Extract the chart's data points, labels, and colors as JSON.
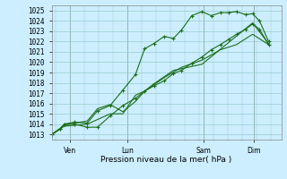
{
  "xlabel": "Pression niveau de la mer( hPa )",
  "bg_color": "#cceeff",
  "grid_color": "#99cccc",
  "line_color": "#1a6e1a",
  "ylim": [
    1012.5,
    1025.5
  ],
  "yticks": [
    1013,
    1014,
    1015,
    1016,
    1017,
    1018,
    1019,
    1020,
    1021,
    1022,
    1023,
    1024,
    1025
  ],
  "xtick_labels": [
    "Ven",
    "Lun",
    "Sam",
    "Dim"
  ],
  "xtick_positions": [
    0.08,
    0.33,
    0.66,
    0.88
  ],
  "series1_x": [
    0.0,
    0.035,
    0.055,
    0.1,
    0.155,
    0.2,
    0.255,
    0.31,
    0.365,
    0.405,
    0.445,
    0.49,
    0.53,
    0.565,
    0.61,
    0.655,
    0.695,
    0.735,
    0.77,
    0.805,
    0.845,
    0.875,
    0.905,
    0.945
  ],
  "series1_y": [
    1013.0,
    1013.5,
    1014.0,
    1014.2,
    1014.1,
    1015.3,
    1015.8,
    1017.3,
    1018.8,
    1021.3,
    1021.8,
    1022.5,
    1022.3,
    1023.1,
    1024.5,
    1024.9,
    1024.5,
    1024.8,
    1024.8,
    1024.9,
    1024.6,
    1024.7,
    1024.0,
    1022.0
  ],
  "series2_x": [
    0.0,
    0.035,
    0.055,
    0.1,
    0.155,
    0.2,
    0.255,
    0.31,
    0.365,
    0.405,
    0.445,
    0.49,
    0.53,
    0.565,
    0.61,
    0.655,
    0.695,
    0.735,
    0.77,
    0.805,
    0.845,
    0.875,
    0.905,
    0.945
  ],
  "series2_y": [
    1013.0,
    1013.5,
    1014.0,
    1014.0,
    1013.7,
    1013.7,
    1014.8,
    1015.8,
    1016.5,
    1017.2,
    1017.7,
    1018.2,
    1018.9,
    1019.2,
    1019.9,
    1020.5,
    1021.2,
    1021.7,
    1022.2,
    1022.7,
    1023.2,
    1023.7,
    1023.2,
    1021.7
  ],
  "series3_x": [
    0.0,
    0.055,
    0.155,
    0.255,
    0.31,
    0.365,
    0.405,
    0.445,
    0.53,
    0.655,
    0.875,
    0.945
  ],
  "series3_y": [
    1013.0,
    1013.8,
    1014.0,
    1015.0,
    1015.0,
    1016.8,
    1017.2,
    1017.9,
    1019.2,
    1019.8,
    1023.8,
    1021.8
  ],
  "series4_x": [
    0.0,
    0.055,
    0.1,
    0.155,
    0.2,
    0.255,
    0.31,
    0.365,
    0.405,
    0.49,
    0.565,
    0.655,
    0.735,
    0.805,
    0.875,
    0.945
  ],
  "series4_y": [
    1013.0,
    1013.9,
    1014.1,
    1014.3,
    1015.5,
    1015.9,
    1015.2,
    1016.2,
    1017.2,
    1018.5,
    1019.5,
    1020.2,
    1021.2,
    1021.7,
    1022.7,
    1021.7
  ]
}
